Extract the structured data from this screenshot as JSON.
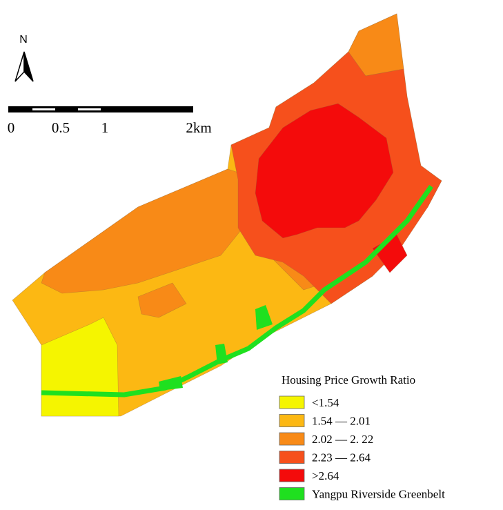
{
  "north_label": "N",
  "scale_bar": {
    "labels": [
      "0",
      "0.5",
      "1",
      "2km"
    ]
  },
  "legend": {
    "title": "Housing Price Growth Ratio",
    "items": [
      {
        "label": "<1.54",
        "color": "#f5f500"
      },
      {
        "label": "1.54 — 2.01",
        "color": "#fcb813"
      },
      {
        "label": "2.02 — 2. 22",
        "color": "#f88a17"
      },
      {
        "label": "2.23 — 2.64",
        "color": "#f6501c"
      },
      {
        "label": ">2.64",
        "color": "#f40b0b"
      },
      {
        "label": "Yangpu Riverside Greenbelt",
        "color": "#1fe01f"
      }
    ]
  }
}
